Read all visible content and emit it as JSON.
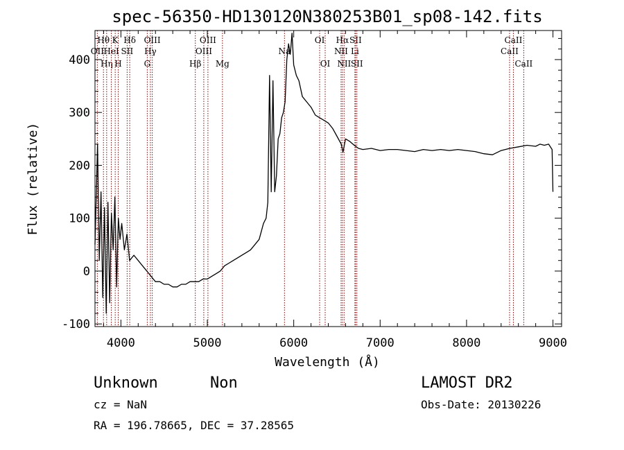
{
  "chart_data": {
    "type": "line",
    "title": "spec-56350-HD130120N380253B01_sp08-142.fits",
    "xlabel": "Wavelength (Å)",
    "ylabel": "Flux (relative)",
    "xlim": [
      3700,
      9100
    ],
    "ylim": [
      -105,
      455
    ],
    "xticks": [
      4000,
      5000,
      6000,
      7000,
      8000,
      9000
    ],
    "yticks": [
      -100,
      0,
      100,
      200,
      300,
      400
    ],
    "grid": false,
    "line_color": "#000000",
    "marker_color": "#8b0000",
    "series": [
      {
        "x": [
          3700,
          3730,
          3750,
          3770,
          3790,
          3810,
          3830,
          3850,
          3870,
          3890,
          3910,
          3930,
          3950,
          3970,
          3990,
          4010,
          4040,
          4070,
          4100,
          4150,
          4200,
          4250,
          4300,
          4350,
          4400,
          4450,
          4500,
          4550,
          4600,
          4650,
          4700,
          4750,
          4800,
          4850,
          4900,
          4950,
          5000,
          5050,
          5100,
          5150,
          5200,
          5250,
          5300,
          5350,
          5400,
          5450,
          5500,
          5550,
          5600,
          5650,
          5680,
          5700,
          5720,
          5740,
          5760,
          5780,
          5800,
          5820,
          5840,
          5860,
          5880,
          5900,
          5920,
          5940,
          5960,
          5980,
          6000,
          6030,
          6060,
          6100,
          6150,
          6200,
          6250,
          6300,
          6350,
          6400,
          6450,
          6500,
          6550,
          6570,
          6600,
          6650,
          6700,
          6750,
          6800,
          6900,
          7000,
          7100,
          7200,
          7300,
          7400,
          7500,
          7600,
          7700,
          7800,
          7900,
          8000,
          8100,
          8200,
          8300,
          8400,
          8500,
          8600,
          8700,
          8800,
          8850,
          8900,
          8950,
          8990,
          9000
        ],
        "y": [
          50,
          240,
          20,
          150,
          -50,
          120,
          -80,
          130,
          -60,
          110,
          40,
          140,
          -30,
          100,
          60,
          90,
          40,
          70,
          20,
          30,
          20,
          10,
          0,
          -10,
          -20,
          -20,
          -25,
          -25,
          -30,
          -30,
          -25,
          -25,
          -20,
          -20,
          -20,
          -15,
          -15,
          -10,
          -5,
          0,
          10,
          15,
          20,
          25,
          30,
          35,
          40,
          50,
          60,
          90,
          100,
          130,
          370,
          150,
          360,
          150,
          180,
          250,
          260,
          290,
          300,
          320,
          400,
          430,
          410,
          450,
          390,
          370,
          360,
          330,
          320,
          310,
          295,
          290,
          285,
          280,
          270,
          255,
          240,
          225,
          250,
          245,
          238,
          232,
          230,
          232,
          228,
          230,
          230,
          228,
          226,
          230,
          228,
          230,
          228,
          230,
          228,
          226,
          222,
          220,
          228,
          232,
          235,
          238,
          236,
          240,
          238,
          240,
          230,
          150
        ]
      }
    ],
    "line_labels": [
      {
        "label": "Hθ",
        "wavelength": 3798,
        "row": 1
      },
      {
        "label": "OII",
        "wavelength": 3727,
        "row": 2
      },
      {
        "label": "Hη",
        "wavelength": 3835,
        "row": 3
      },
      {
        "label": "K",
        "wavelength": 3934,
        "row": 1
      },
      {
        "label": "HeI",
        "wavelength": 3889,
        "row": 2
      },
      {
        "label": "H",
        "wavelength": 3969,
        "row": 3
      },
      {
        "label": "Hδ",
        "wavelength": 4102,
        "row": 1
      },
      {
        "label": "SII",
        "wavelength": 4072,
        "row": 2
      },
      {
        "label": "OIII",
        "wavelength": 4363,
        "row": 1
      },
      {
        "label": "Hγ",
        "wavelength": 4341,
        "row": 2
      },
      {
        "label": "G",
        "wavelength": 4305,
        "row": 3
      },
      {
        "label": "OIII",
        "wavelength": 5007,
        "row": 1
      },
      {
        "label": "OIII",
        "wavelength": 4959,
        "row": 2
      },
      {
        "label": "Hβ",
        "wavelength": 4861,
        "row": 3
      },
      {
        "label": "Mg",
        "wavelength": 5175,
        "row": 3
      },
      {
        "label": "Na",
        "wavelength": 5893,
        "row": 2
      },
      {
        "label": "OI",
        "wavelength": 6300,
        "row": 1
      },
      {
        "label": "OI",
        "wavelength": 6364,
        "row": 3
      },
      {
        "label": "Hα",
        "wavelength": 6563,
        "row": 1
      },
      {
        "label": "SII",
        "wavelength": 6716,
        "row": 1
      },
      {
        "label": "NII",
        "wavelength": 6548,
        "row": 2
      },
      {
        "label": "Li",
        "wavelength": 6708,
        "row": 2
      },
      {
        "label": "NII",
        "wavelength": 6583,
        "row": 3
      },
      {
        "label": "SII",
        "wavelength": 6731,
        "row": 3
      },
      {
        "label": "CaII",
        "wavelength": 8542,
        "row": 1
      },
      {
        "label": "CaII",
        "wavelength": 8498,
        "row": 2
      },
      {
        "label": "CaII",
        "wavelength": 8662,
        "row": 3
      }
    ]
  },
  "info": {
    "classification": "Unknown",
    "subclass": "Non",
    "survey": "LAMOST DR2",
    "cz": "cz = NaN",
    "obs_date": "Obs-Date: 20130226",
    "coords": "RA = 196.78665, DEC =  37.28565"
  }
}
